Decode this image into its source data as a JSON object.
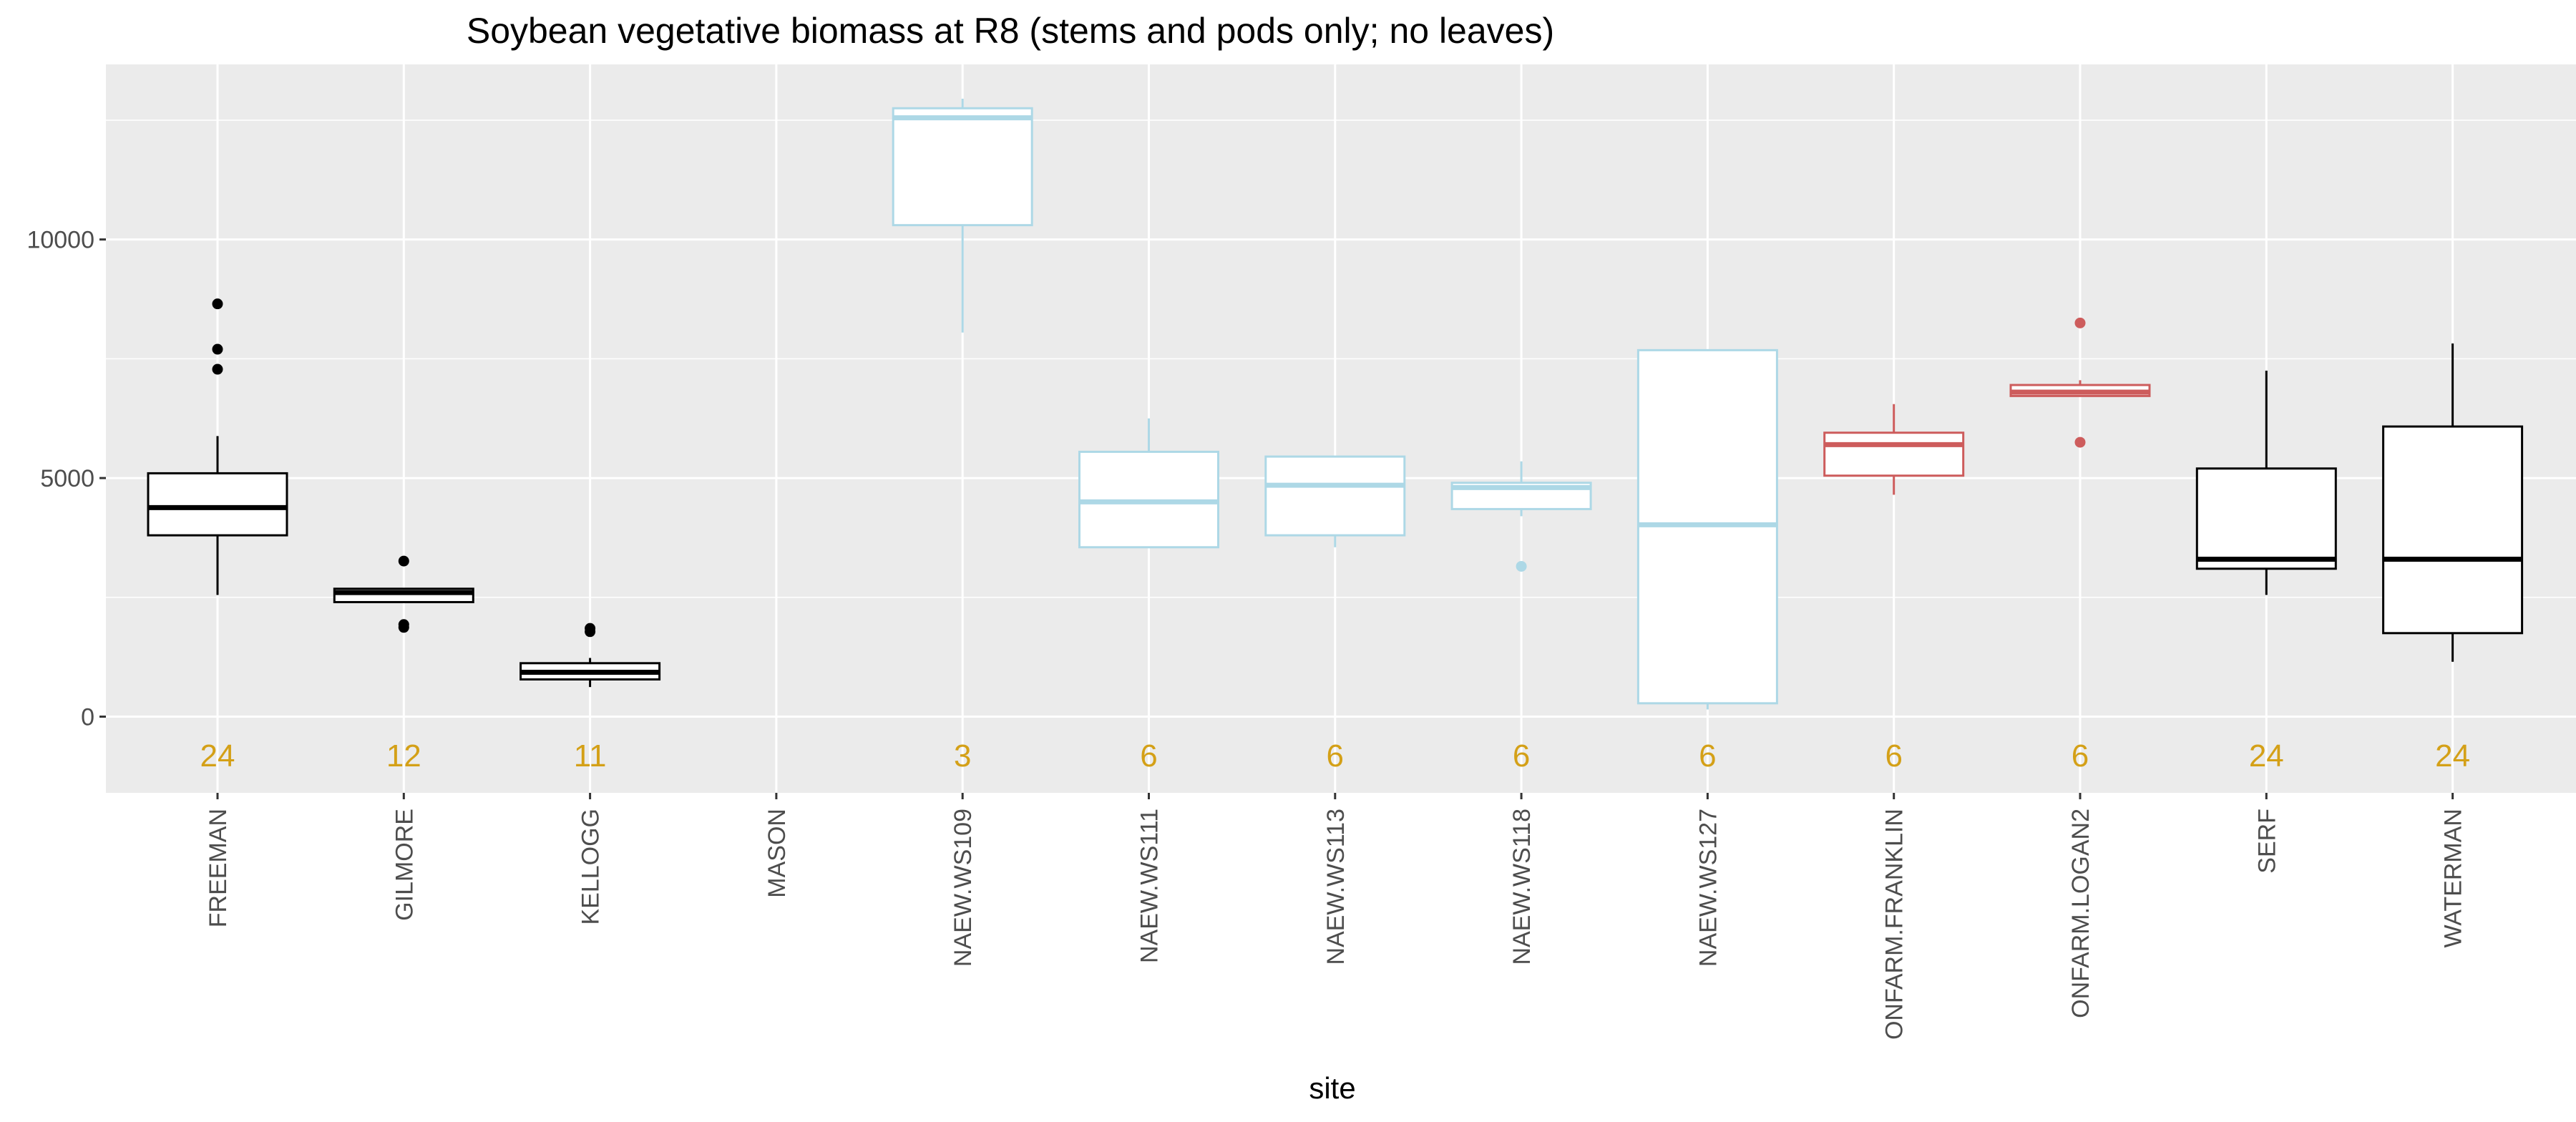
{
  "chart_data": {
    "type": "boxplot",
    "title": "Soybean vegetative biomass at R8 (stems and pods only; no leaves)",
    "xlabel": "site",
    "ylabel": "",
    "ylim": [
      -1600,
      13600
    ],
    "y_ticks": [
      0,
      5000,
      10000
    ],
    "grid": true,
    "colors": {
      "panel_bg": "#ebebeb",
      "grid_major": "#ffffff",
      "count_text": "#d4a017",
      "black": "#000000",
      "lightblue": "#add8e6",
      "red": "#cd5c5c"
    },
    "count_y": -800,
    "categories": [
      "FREEMAN",
      "GILMORE",
      "KELLOGG",
      "MASON",
      "NAEW.WS109",
      "NAEW.WS111",
      "NAEW.WS113",
      "NAEW.WS118",
      "NAEW.WS127",
      "ONFARM.FRANKLIN",
      "ONFARM.LOGAN2",
      "SERF",
      "WATERMAN"
    ],
    "boxes": [
      {
        "site": "FREEMAN",
        "color": "black",
        "n": "24",
        "lower_whisker": 2550,
        "q1": 3800,
        "median": 4380,
        "q3": 5100,
        "upper_whisker": 5880,
        "outliers": [
          7280,
          7700,
          8650
        ]
      },
      {
        "site": "GILMORE",
        "color": "black",
        "n": "12",
        "lower_whisker": 2400,
        "q1": 2400,
        "median": 2600,
        "q3": 2680,
        "upper_whisker": 2680,
        "outliers": [
          1870,
          1930,
          3260
        ]
      },
      {
        "site": "KELLOGG",
        "color": "black",
        "n": "11",
        "lower_whisker": 620,
        "q1": 780,
        "median": 930,
        "q3": 1120,
        "upper_whisker": 1230,
        "outliers": [
          1780,
          1850
        ]
      },
      {
        "site": "MASON",
        "color": "black",
        "n": "",
        "empty": true
      },
      {
        "site": "NAEW.WS109",
        "color": "lightblue",
        "n": "3",
        "lower_whisker": 8050,
        "q1": 10300,
        "median": 12550,
        "q3": 12750,
        "upper_whisker": 12950,
        "outliers": []
      },
      {
        "site": "NAEW.WS111",
        "color": "lightblue",
        "n": "6",
        "lower_whisker": 3550,
        "q1": 3550,
        "median": 4500,
        "q3": 5550,
        "upper_whisker": 6250,
        "outliers": []
      },
      {
        "site": "NAEW.WS113",
        "color": "lightblue",
        "n": "6",
        "lower_whisker": 3550,
        "q1": 3800,
        "median": 4850,
        "q3": 5450,
        "upper_whisker": 5450,
        "outliers": []
      },
      {
        "site": "NAEW.WS118",
        "color": "lightblue",
        "n": "6",
        "lower_whisker": 4200,
        "q1": 4350,
        "median": 4800,
        "q3": 4900,
        "upper_whisker": 5350,
        "outliers": [
          3150
        ]
      },
      {
        "site": "NAEW.WS127",
        "color": "lightblue",
        "n": "6",
        "lower_whisker": 150,
        "q1": 280,
        "median": 4020,
        "q3": 7680,
        "upper_whisker": 7680,
        "outliers": []
      },
      {
        "site": "ONFARM.FRANKLIN",
        "color": "red",
        "n": "6",
        "lower_whisker": 4650,
        "q1": 5050,
        "median": 5700,
        "q3": 5950,
        "upper_whisker": 6550,
        "outliers": []
      },
      {
        "site": "ONFARM.LOGAN2",
        "color": "red",
        "n": "6",
        "lower_whisker": 6720,
        "q1": 6720,
        "median": 6800,
        "q3": 6950,
        "upper_whisker": 7050,
        "outliers": [
          5750,
          8250
        ]
      },
      {
        "site": "SERF",
        "color": "black",
        "n": "24",
        "lower_whisker": 2550,
        "q1": 3100,
        "median": 3300,
        "q3": 5200,
        "upper_whisker": 7250,
        "outliers": []
      },
      {
        "site": "WATERMAN",
        "color": "black",
        "n": "24",
        "lower_whisker": 1150,
        "q1": 1750,
        "median": 3300,
        "q3": 6080,
        "upper_whisker": 7820,
        "outliers": []
      }
    ]
  }
}
